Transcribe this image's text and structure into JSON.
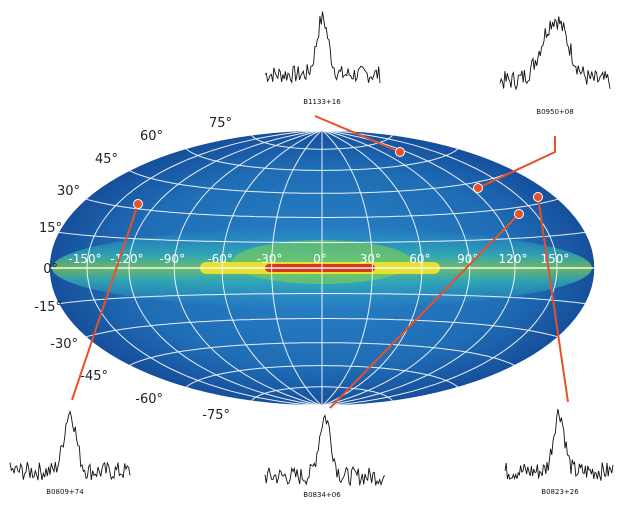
{
  "latitude_labels": [
    "75°",
    "60°",
    "45°",
    "30°",
    "15°",
    "0°",
    "-15°",
    "-30°",
    "-45°",
    "-60°",
    "-75°"
  ],
  "longitude_labels": [
    "-150°",
    "-120°",
    "-90°",
    "-60°",
    "-30°",
    "0°",
    "30°",
    "60°",
    "90°",
    "120°",
    "150°"
  ],
  "pulsars": [
    {
      "label": "B1133+16"
    },
    {
      "label": "B0950+08"
    },
    {
      "label": "B0809+74"
    },
    {
      "label": "B0834+06"
    },
    {
      "label": "B0823+26"
    }
  ]
}
